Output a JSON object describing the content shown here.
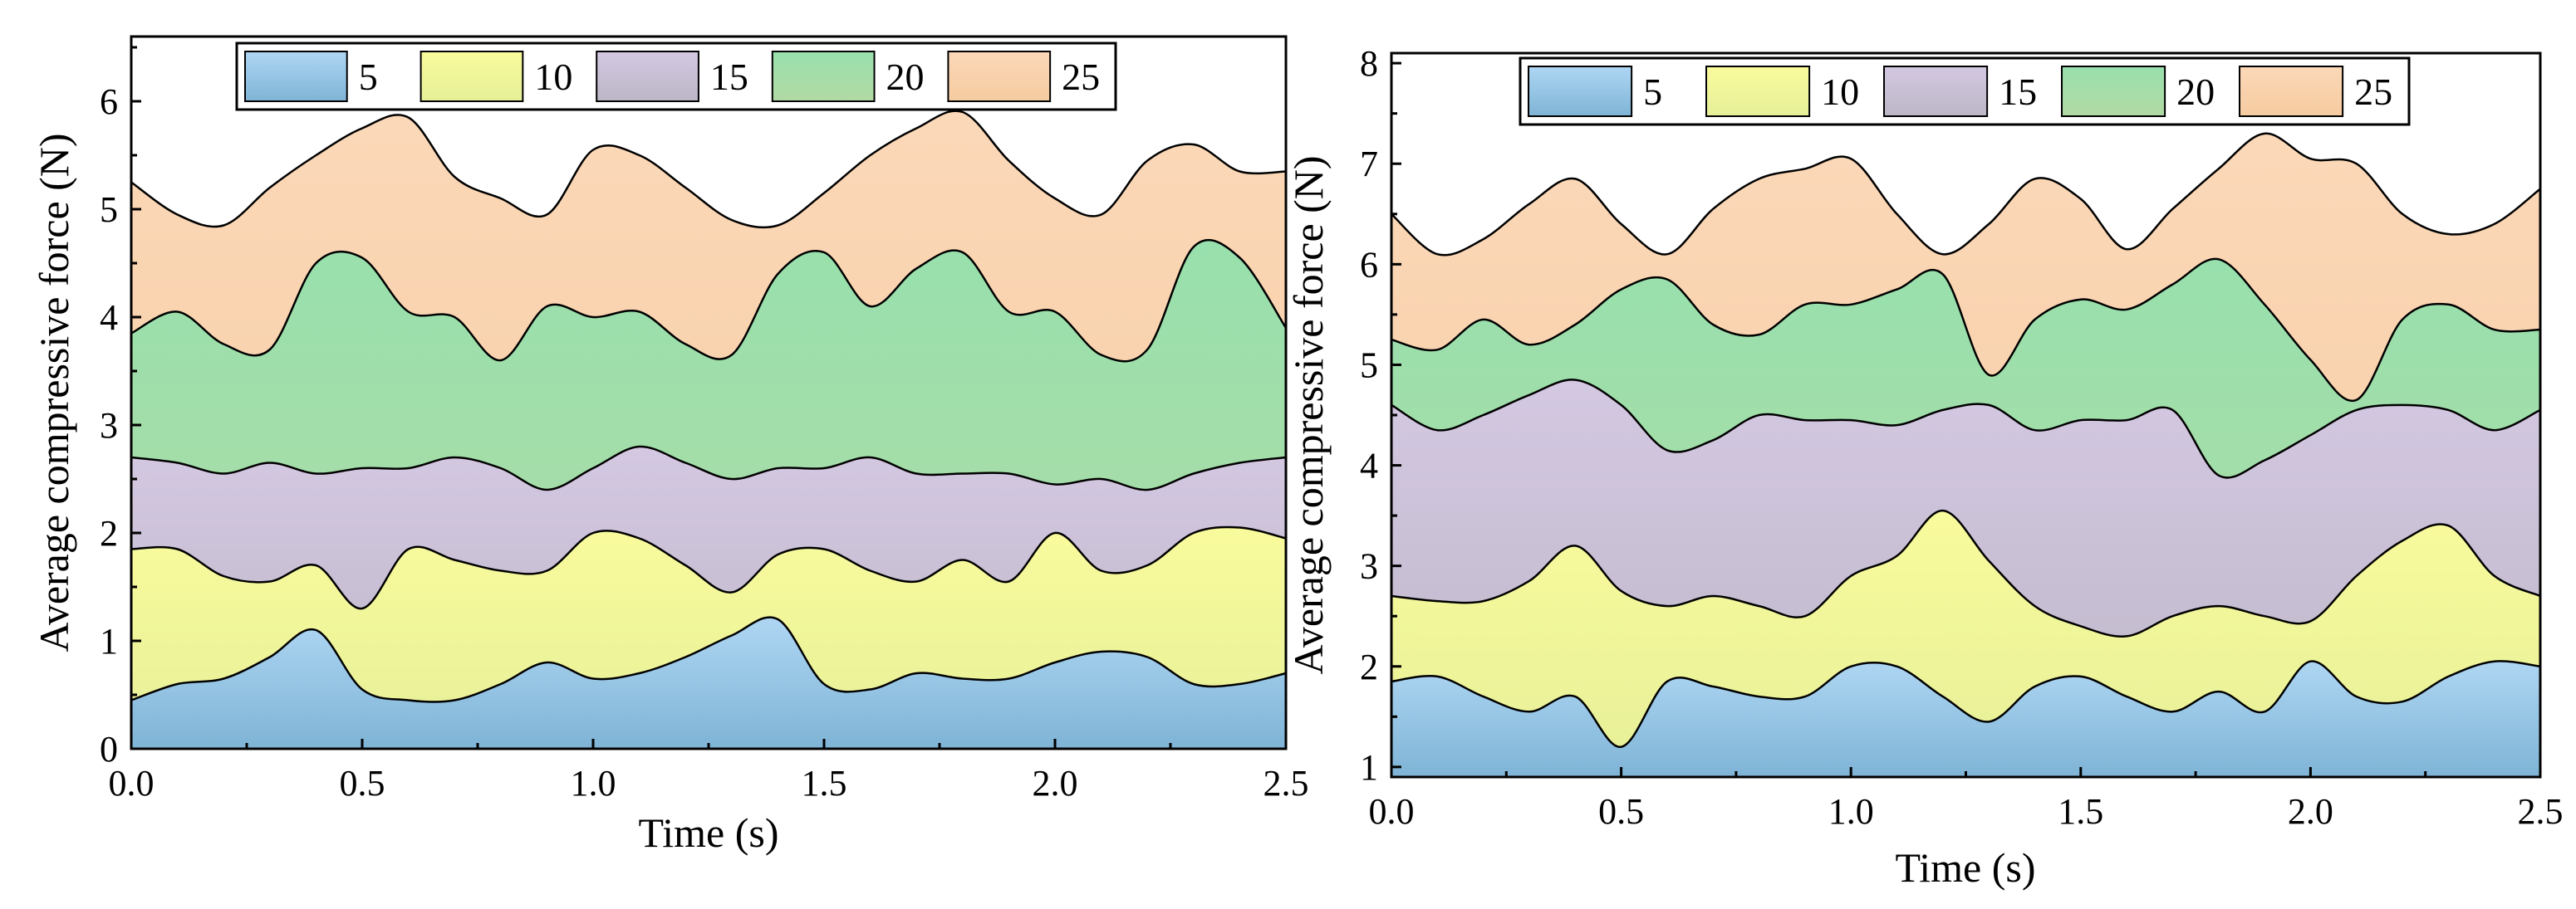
{
  "chart_data": [
    {
      "type": "area",
      "title": "",
      "xlabel": "Time (s)",
      "ylabel": "Average compressive force (N)",
      "xlim": [
        0,
        2.5
      ],
      "ylim": [
        0,
        6.6
      ],
      "xticks": [
        "0.0",
        "0.5",
        "1.0",
        "1.5",
        "2.0",
        "2.5"
      ],
      "yticks": [
        "0",
        "1",
        "2",
        "3",
        "4",
        "5",
        "6"
      ],
      "legend_position": "top-center",
      "x": [
        0,
        0.1,
        0.2,
        0.3,
        0.4,
        0.5,
        0.6,
        0.7,
        0.8,
        0.9,
        1.0,
        1.1,
        1.2,
        1.3,
        1.4,
        1.5,
        1.6,
        1.7,
        1.8,
        1.9,
        2.0,
        2.1,
        2.2,
        2.3,
        2.4,
        2.5
      ],
      "series": [
        {
          "name": "5",
          "color": "#8bbede",
          "values": [
            0.45,
            0.6,
            0.65,
            0.85,
            1.1,
            0.55,
            0.45,
            0.45,
            0.6,
            0.8,
            0.65,
            0.7,
            0.85,
            1.05,
            1.2,
            0.6,
            0.55,
            0.7,
            0.65,
            0.65,
            0.8,
            0.9,
            0.85,
            0.6,
            0.6,
            0.7
          ]
        },
        {
          "name": "10",
          "color": "#eef28e",
          "values": [
            1.85,
            1.85,
            1.6,
            1.55,
            1.7,
            1.3,
            1.85,
            1.75,
            1.65,
            1.65,
            2.0,
            1.95,
            1.7,
            1.45,
            1.8,
            1.85,
            1.65,
            1.55,
            1.75,
            1.55,
            2.0,
            1.65,
            1.7,
            2.0,
            2.05,
            1.95
          ]
        },
        {
          "name": "15",
          "color": "#c4bed3",
          "values": [
            2.7,
            2.65,
            2.55,
            2.65,
            2.55,
            2.6,
            2.6,
            2.7,
            2.6,
            2.4,
            2.6,
            2.8,
            2.65,
            2.5,
            2.6,
            2.6,
            2.7,
            2.55,
            2.55,
            2.55,
            2.45,
            2.5,
            2.4,
            2.55,
            2.65,
            2.7
          ]
        },
        {
          "name": "20",
          "color": "#a9ddaa",
          "values": [
            3.85,
            4.05,
            3.75,
            3.7,
            4.5,
            4.55,
            4.05,
            4.0,
            3.6,
            4.1,
            4.0,
            4.05,
            3.75,
            3.65,
            4.4,
            4.6,
            4.1,
            4.45,
            4.6,
            4.05,
            4.05,
            3.65,
            3.7,
            4.65,
            4.55,
            3.9
          ]
        },
        {
          "name": "25",
          "color": "#f7cfaa",
          "values": [
            5.25,
            4.95,
            4.85,
            5.2,
            5.5,
            5.75,
            5.85,
            5.3,
            5.1,
            4.95,
            5.55,
            5.5,
            5.2,
            4.9,
            4.85,
            5.15,
            5.5,
            5.75,
            5.9,
            5.45,
            5.1,
            4.95,
            5.45,
            5.6,
            5.35,
            5.35
          ]
        }
      ]
    },
    {
      "type": "area",
      "title": "",
      "xlabel": "Time (s)",
      "ylabel": "Average compressive force (N)",
      "xlim": [
        0,
        2.5
      ],
      "ylim": [
        0.9,
        8.1
      ],
      "xticks": [
        "0.0",
        "0.5",
        "1.0",
        "1.5",
        "2.0",
        "2.5"
      ],
      "yticks": [
        "1",
        "2",
        "3",
        "4",
        "5",
        "6",
        "7",
        "8"
      ],
      "legend_position": "top-center",
      "x": [
        0,
        0.1,
        0.2,
        0.3,
        0.4,
        0.5,
        0.6,
        0.7,
        0.8,
        0.9,
        1.0,
        1.1,
        1.2,
        1.3,
        1.4,
        1.5,
        1.6,
        1.7,
        1.8,
        1.9,
        2.0,
        2.1,
        2.2,
        2.3,
        2.4,
        2.5
      ],
      "series": [
        {
          "name": "5",
          "color": "#8bbede",
          "values": [
            1.85,
            1.9,
            1.7,
            1.55,
            1.7,
            1.2,
            1.85,
            1.8,
            1.7,
            1.7,
            2.0,
            2.0,
            1.7,
            1.45,
            1.8,
            1.9,
            1.7,
            1.55,
            1.75,
            1.55,
            2.05,
            1.7,
            1.65,
            1.9,
            2.05,
            2.0
          ]
        },
        {
          "name": "10",
          "color": "#eef28e",
          "values": [
            2.7,
            2.65,
            2.65,
            2.85,
            3.2,
            2.75,
            2.6,
            2.7,
            2.6,
            2.5,
            2.9,
            3.1,
            3.55,
            3.05,
            2.6,
            2.4,
            2.3,
            2.5,
            2.6,
            2.5,
            2.45,
            2.9,
            3.25,
            3.4,
            2.9,
            2.7
          ]
        },
        {
          "name": "15",
          "color": "#c4bed3",
          "values": [
            4.6,
            4.35,
            4.5,
            4.7,
            4.85,
            4.6,
            4.15,
            4.25,
            4.5,
            4.45,
            4.45,
            4.4,
            4.55,
            4.6,
            4.35,
            4.45,
            4.45,
            4.55,
            3.9,
            4.05,
            4.3,
            4.55,
            4.6,
            4.55,
            4.35,
            4.55
          ]
        },
        {
          "name": "20",
          "color": "#a9ddaa",
          "values": [
            5.25,
            5.15,
            5.45,
            5.2,
            5.4,
            5.75,
            5.85,
            5.4,
            5.3,
            5.6,
            5.6,
            5.75,
            5.9,
            4.9,
            5.45,
            5.65,
            5.55,
            5.8,
            6.05,
            5.6,
            5.05,
            4.65,
            5.45,
            5.6,
            5.35,
            5.35
          ]
        },
        {
          "name": "25",
          "color": "#f7cfaa",
          "values": [
            6.5,
            6.1,
            6.25,
            6.6,
            6.85,
            6.4,
            6.1,
            6.55,
            6.85,
            6.95,
            7.05,
            6.5,
            6.1,
            6.4,
            6.85,
            6.65,
            6.15,
            6.55,
            6.95,
            7.3,
            7.05,
            7.0,
            6.5,
            6.3,
            6.4,
            6.75
          ]
        }
      ]
    }
  ]
}
